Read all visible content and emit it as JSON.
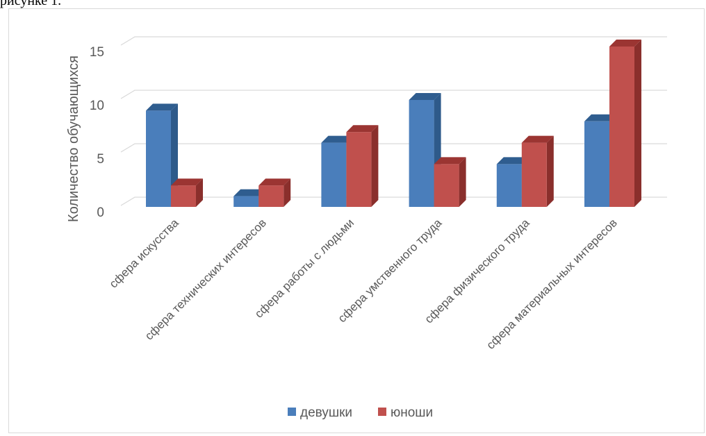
{
  "caption": "рисунке 1.",
  "chart_data": {
    "type": "bar",
    "style": "3d-clustered-column",
    "categories": [
      "сфера искусства",
      "сфера технических интересов",
      "сфера работы с людьми",
      "сфера умственного труда",
      "сфера физического труда",
      "сфера материальных интересов"
    ],
    "series": [
      {
        "name": "девушки",
        "values": [
          9,
          1,
          6,
          10,
          4,
          8
        ],
        "color": "#4a7ebb",
        "side_color": "#2e5a8a",
        "top_color": "#2f5d8f"
      },
      {
        "name": "юноши",
        "values": [
          2,
          2,
          7,
          4,
          6,
          15
        ],
        "color": "#c0504d",
        "side_color": "#8a2f2c",
        "top_color": "#9b3532"
      }
    ],
    "xlabel": "",
    "ylabel": "Количество обучающихся",
    "ylim": [
      0,
      15
    ],
    "yticks": [
      0,
      5,
      10,
      15
    ],
    "grid": true,
    "legend_position": "bottom"
  }
}
